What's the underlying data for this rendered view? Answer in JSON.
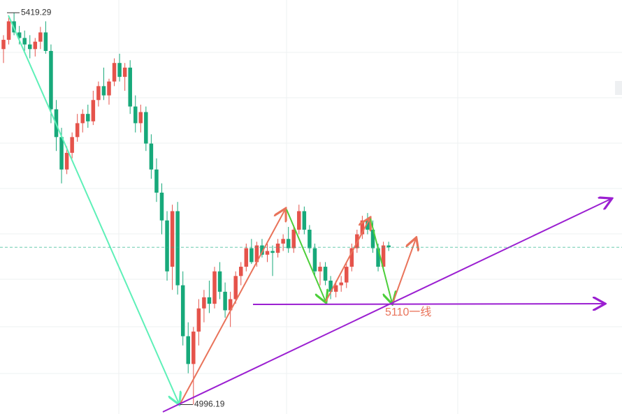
{
  "chart_data": {
    "type": "candlestick",
    "ylim": [
      4986,
      5433
    ],
    "up_color": "#e5534b",
    "down_color": "#17a97a",
    "max_label": 5419.29,
    "min_label": 4996.19,
    "support_label": "5110一线",
    "ohlc": [
      [
        5380,
        5395,
        5365,
        5390
      ],
      [
        5390,
        5415,
        5385,
        5410
      ],
      [
        5410,
        5419.29,
        5395,
        5398
      ],
      [
        5398,
        5405,
        5385,
        5392
      ],
      [
        5392,
        5400,
        5378,
        5385
      ],
      [
        5385,
        5395,
        5370,
        5380
      ],
      [
        5380,
        5392,
        5372,
        5388
      ],
      [
        5388,
        5404,
        5380,
        5398
      ],
      [
        5398,
        5410,
        5375,
        5378
      ],
      [
        5378,
        5385,
        5300,
        5315
      ],
      [
        5315,
        5325,
        5270,
        5285
      ],
      [
        5285,
        5295,
        5235,
        5250
      ],
      [
        5250,
        5275,
        5245,
        5268
      ],
      [
        5268,
        5290,
        5262,
        5285
      ],
      [
        5285,
        5310,
        5280,
        5300
      ],
      [
        5300,
        5315,
        5290,
        5310
      ],
      [
        5310,
        5320,
        5295,
        5302
      ],
      [
        5302,
        5335,
        5298,
        5325
      ],
      [
        5325,
        5345,
        5318,
        5340
      ],
      [
        5340,
        5360,
        5325,
        5330
      ],
      [
        5330,
        5348,
        5320,
        5345
      ],
      [
        5345,
        5370,
        5340,
        5365
      ],
      [
        5365,
        5375,
        5345,
        5350
      ],
      [
        5350,
        5365,
        5335,
        5360
      ],
      [
        5360,
        5368,
        5310,
        5318
      ],
      [
        5318,
        5330,
        5290,
        5300
      ],
      [
        5300,
        5320,
        5290,
        5312
      ],
      [
        5312,
        5318,
        5270,
        5278
      ],
      [
        5278,
        5288,
        5240,
        5250
      ],
      [
        5250,
        5262,
        5215,
        5225
      ],
      [
        5225,
        5235,
        5180,
        5195
      ],
      [
        5195,
        5205,
        5130,
        5140
      ],
      [
        5145,
        5212,
        5120,
        5205
      ],
      [
        5205,
        5215,
        5115,
        5125
      ],
      [
        5125,
        5140,
        5060,
        5070
      ],
      [
        5070,
        5085,
        5030,
        5040
      ],
      [
        5040,
        5080,
        4996.19,
        5075
      ],
      [
        5075,
        5110,
        5060,
        5100
      ],
      [
        5100,
        5120,
        5085,
        5112
      ],
      [
        5112,
        5130,
        5095,
        5105
      ],
      [
        5105,
        5145,
        5100,
        5140
      ],
      [
        5140,
        5150,
        5110,
        5118
      ],
      [
        5118,
        5128,
        5090,
        5098
      ],
      [
        5098,
        5118,
        5080,
        5110
      ],
      [
        5110,
        5140,
        5105,
        5135
      ],
      [
        5135,
        5150,
        5125,
        5145
      ],
      [
        5145,
        5170,
        5140,
        5165
      ],
      [
        5165,
        5175,
        5148,
        5150
      ],
      [
        5150,
        5172,
        5145,
        5168
      ],
      [
        5168,
        5175,
        5155,
        5158
      ],
      [
        5158,
        5170,
        5150,
        5162
      ],
      [
        5162,
        5168,
        5135,
        5160
      ],
      [
        5160,
        5175,
        5155,
        5170
      ],
      [
        5170,
        5180,
        5162,
        5175
      ],
      [
        5175,
        5188,
        5160,
        5165
      ],
      [
        5165,
        5190,
        5160,
        5185
      ],
      [
        5185,
        5212,
        5180,
        5205
      ],
      [
        5205,
        5210,
        5180,
        5185
      ],
      [
        5185,
        5190,
        5160,
        5165
      ],
      [
        5165,
        5170,
        5135,
        5140
      ],
      [
        5140,
        5150,
        5125,
        5145
      ],
      [
        5145,
        5150,
        5125,
        5130
      ],
      [
        5130,
        5135,
        5110,
        5118
      ],
      [
        5118,
        5130,
        5112,
        5125
      ],
      [
        5125,
        5135,
        5118,
        5128
      ],
      [
        5128,
        5150,
        5122,
        5145
      ],
      [
        5145,
        5170,
        5140,
        5165
      ],
      [
        5165,
        5185,
        5160,
        5180
      ],
      [
        5180,
        5200,
        5175,
        5195
      ],
      [
        5195,
        5203,
        5180,
        5185
      ],
      [
        5185,
        5195,
        5160,
        5165
      ],
      [
        5165,
        5170,
        5140,
        5145
      ],
      [
        5145,
        5172,
        5140,
        5168
      ],
      [
        5168,
        5172,
        5162,
        5166
      ]
    ]
  }
}
